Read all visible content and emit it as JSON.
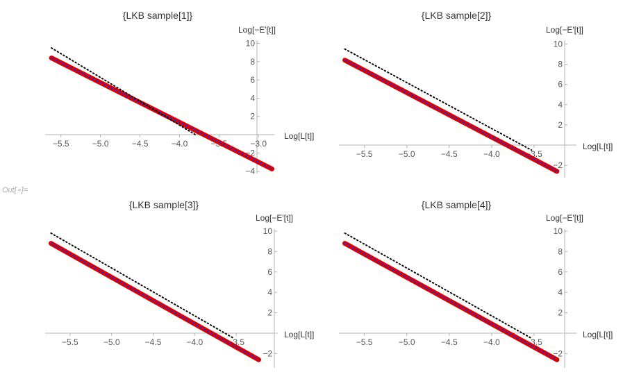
{
  "out_label": "Out[∘]=",
  "chart_data": [
    {
      "type": "line",
      "title": "{LKB sample[1]}",
      "xlabel": "Log[L[t]]",
      "ylabel": "Log[−E'[t]]",
      "xlim": [
        -5.7,
        -2.8
      ],
      "ylim": [
        -4.3,
        10.3
      ],
      "x_ticks": [
        -5.5,
        -5.0,
        -4.5,
        -4.0,
        -3.5,
        -3.0
      ],
      "x_tick_labels": [
        "−5.5",
        "−5.0",
        "−4.5",
        "−4.0",
        "−3.5",
        "−3.0"
      ],
      "y_ticks": [
        -4,
        -2,
        2,
        4,
        6,
        8,
        10
      ],
      "y_tick_labels": [
        "−4",
        "−2",
        "2",
        "4",
        "6",
        "8",
        "10"
      ],
      "series": [
        {
          "style": "data",
          "color": "#dd0000",
          "x": [
            -5.62,
            -2.83
          ],
          "y": [
            8.4,
            -3.75
          ]
        },
        {
          "style": "fit",
          "color": "#2a2ad8",
          "x": [
            -5.62,
            -2.83
          ],
          "y": [
            8.4,
            -3.75
          ]
        },
        {
          "style": "reference",
          "color": "#000000",
          "x": [
            -5.62,
            -3.8
          ],
          "y": [
            9.5,
            0.0
          ]
        }
      ]
    },
    {
      "type": "line",
      "title": "{LKB sample[2]}",
      "xlabel": "Log[L[t]]",
      "ylabel": "Log[−E'[t]]",
      "xlim": [
        -5.8,
        -3.0
      ],
      "ylim": [
        -3.3,
        10.3
      ],
      "x_ticks": [
        -5.5,
        -5.0,
        -4.5,
        -4.0,
        -3.5
      ],
      "x_tick_labels": [
        "−5.5",
        "−5.0",
        "−4.5",
        "−4.0",
        "−3.5"
      ],
      "y_ticks": [
        -2,
        2,
        4,
        6,
        8,
        10
      ],
      "y_tick_labels": [
        "−2",
        "2",
        "4",
        "6",
        "8",
        "10"
      ],
      "series": [
        {
          "style": "data",
          "color": "#dd0000",
          "x": [
            -5.73,
            -3.23
          ],
          "y": [
            8.4,
            -2.6
          ]
        },
        {
          "style": "fit",
          "color": "#2a2ad8",
          "x": [
            -5.73,
            -3.23
          ],
          "y": [
            8.4,
            -2.6
          ]
        },
        {
          "style": "reference",
          "color": "#000000",
          "x": [
            -5.73,
            -3.53
          ],
          "y": [
            9.5,
            -0.5
          ]
        }
      ]
    },
    {
      "type": "line",
      "title": "{LKB sample[3]}",
      "xlabel": "Log[L[t]]",
      "ylabel": "Log[−E'[t]]",
      "xlim": [
        -5.8,
        -3.0
      ],
      "ylim": [
        -3.3,
        10.3
      ],
      "x_ticks": [
        -5.5,
        -5.0,
        -4.5,
        -4.0,
        -3.5
      ],
      "x_tick_labels": [
        "−5.5",
        "−5.0",
        "−4.5",
        "−4.0",
        "−3.5"
      ],
      "y_ticks": [
        -2,
        2,
        4,
        6,
        8,
        10
      ],
      "y_tick_labels": [
        "−2",
        "2",
        "4",
        "6",
        "8",
        "10"
      ],
      "series": [
        {
          "style": "data",
          "color": "#dd0000",
          "x": [
            -5.73,
            -3.23
          ],
          "y": [
            8.8,
            -2.6
          ]
        },
        {
          "style": "fit",
          "color": "#2a2ad8",
          "x": [
            -5.73,
            -3.23
          ],
          "y": [
            8.8,
            -2.6
          ]
        },
        {
          "style": "reference",
          "color": "#000000",
          "x": [
            -5.73,
            -3.53
          ],
          "y": [
            9.8,
            -0.5
          ]
        }
      ]
    },
    {
      "type": "line",
      "title": "{LKB sample[4]}",
      "xlabel": "Log[L[t]]",
      "ylabel": "Log[−E'[t]]",
      "xlim": [
        -5.8,
        -3.0
      ],
      "ylim": [
        -3.3,
        10.3
      ],
      "x_ticks": [
        -5.5,
        -5.0,
        -4.5,
        -4.0,
        -3.5
      ],
      "x_tick_labels": [
        "−5.5",
        "−5.0",
        "−4.5",
        "−4.0",
        "−3.5"
      ],
      "y_ticks": [
        -2,
        2,
        4,
        6,
        8,
        10
      ],
      "y_tick_labels": [
        "−2",
        "2",
        "4",
        "6",
        "8",
        "10"
      ],
      "series": [
        {
          "style": "data",
          "color": "#dd0000",
          "x": [
            -5.73,
            -3.23
          ],
          "y": [
            8.8,
            -2.6
          ]
        },
        {
          "style": "fit",
          "color": "#2a2ad8",
          "x": [
            -5.73,
            -3.23
          ],
          "y": [
            8.8,
            -2.6
          ]
        },
        {
          "style": "reference",
          "color": "#000000",
          "x": [
            -5.73,
            -3.53
          ],
          "y": [
            9.8,
            -0.5
          ]
        }
      ]
    }
  ]
}
